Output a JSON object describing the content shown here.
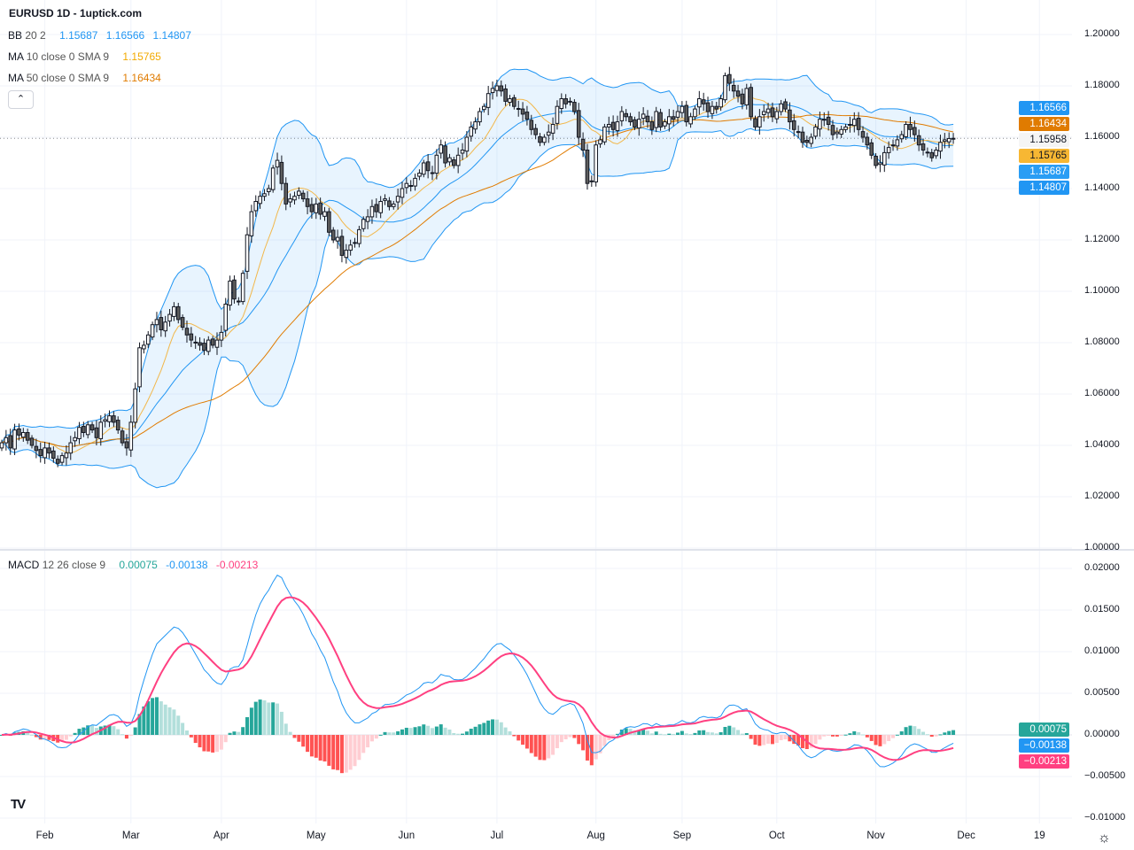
{
  "header": {
    "title": "EURUSD 1D - 1uptick.com"
  },
  "legends": {
    "bb": {
      "label": "BB",
      "params": "20 2",
      "basis": "1.15687",
      "upper": "1.16566",
      "lower": "1.14807"
    },
    "ma10": {
      "label": "MA",
      "params": "10 close 0 SMA 9",
      "value": "1.15765"
    },
    "ma50": {
      "label": "MA",
      "params": "50 close 0 SMA 9",
      "value": "1.16434"
    },
    "macd": {
      "label": "MACD",
      "params": "12 26 close 9",
      "hist": "0.00075",
      "macd": "-0.00138",
      "signal": "-0.00213"
    }
  },
  "collapse_icon": "chevron-up-icon",
  "price_tags": [
    {
      "text": "1.16566",
      "color": "#2196f3",
      "fg": "#ffffff"
    },
    {
      "text": "1.16434",
      "color": "#e07b00",
      "fg": "#ffffff"
    },
    {
      "text": "1.15958",
      "color": "#f5f5f5",
      "fg": "#131722"
    },
    {
      "text": "1.15765",
      "color": "#f7b733",
      "fg": "#131722"
    },
    {
      "text": "1.15687",
      "color": "#2a9df4",
      "fg": "#ffffff"
    },
    {
      "text": "1.14807",
      "color": "#2196f3",
      "fg": "#ffffff"
    }
  ],
  "macd_tags": [
    {
      "text": "0.00075",
      "color": "#26a69a"
    },
    {
      "text": "−0.00138",
      "color": "#2196f3"
    },
    {
      "text": "−0.00213",
      "color": "#ff4081"
    }
  ],
  "price_axis": [
    "1.20000",
    "1.18000",
    "1.16000",
    "1.14000",
    "1.12000",
    "1.10000",
    "1.08000",
    "1.06000",
    "1.04000",
    "1.02000",
    "1.00000"
  ],
  "macd_axis": [
    "0.02000",
    "0.01500",
    "0.01000",
    "0.00500",
    "0.00000",
    "−0.00500",
    "−0.01000"
  ],
  "time_axis": [
    {
      "label": "Feb",
      "bar": 10
    },
    {
      "label": "Mar",
      "bar": 30
    },
    {
      "label": "Apr",
      "bar": 51
    },
    {
      "label": "May",
      "bar": 73
    },
    {
      "label": "Jun",
      "bar": 94
    },
    {
      "label": "Jul",
      "bar": 115
    },
    {
      "label": "Aug",
      "bar": 138
    },
    {
      "label": "Sep",
      "bar": 158
    },
    {
      "label": "Oct",
      "bar": 180
    },
    {
      "label": "Nov",
      "bar": 203
    },
    {
      "label": "Dec",
      "bar": 224
    },
    {
      "label": "19",
      "bar": 241
    }
  ],
  "settings_icon": "gear-icon",
  "logo": "TV",
  "colors": {
    "up": "#ffffff",
    "down": "#5d5d5d",
    "bb": "#2196f3",
    "ma10": "#f2b74a",
    "ma50": "#e07b00",
    "macd": "#2196f3",
    "signal": "#ff4081",
    "hist_up_strong": "#26a69a",
    "hist_up_weak": "#b2dfdb",
    "hist_dn_strong": "#ff5252",
    "hist_dn_weak": "#ffcdd2"
  },
  "chart_data": {
    "type": "candlestick",
    "symbol": "EURUSD",
    "interval": "1D",
    "ylim": [
      1.0,
      1.2
    ],
    "macd_ylim": [
      -0.0105,
      0.021
    ],
    "grid": true,
    "last_price": 1.15958,
    "closes": [
      1.041,
      1.043,
      1.039,
      1.046,
      1.044,
      1.045,
      1.042,
      1.04,
      1.038,
      1.036,
      1.039,
      1.037,
      1.035,
      1.033,
      1.036,
      1.037,
      1.041,
      1.043,
      1.047,
      1.045,
      1.048,
      1.046,
      1.043,
      1.049,
      1.05,
      1.0515,
      1.049,
      1.046,
      1.041,
      1.039,
      1.049,
      1.062,
      1.078,
      1.079,
      1.083,
      1.087,
      1.089,
      1.085,
      1.088,
      1.091,
      1.094,
      1.089,
      1.086,
      1.083,
      1.081,
      1.08,
      1.079,
      1.077,
      1.081,
      1.079,
      1.081,
      1.084,
      1.095,
      1.104,
      1.097,
      1.096,
      1.107,
      1.122,
      1.131,
      1.135,
      1.137,
      1.138,
      1.14,
      1.148,
      1.151,
      1.142,
      1.134,
      1.136,
      1.137,
      1.139,
      1.136,
      1.133,
      1.131,
      1.134,
      1.13,
      1.131,
      1.123,
      1.12,
      1.121,
      1.114,
      1.116,
      1.118,
      1.119,
      1.124,
      1.128,
      1.129,
      1.133,
      1.131,
      1.135,
      1.136,
      1.133,
      1.134,
      1.137,
      1.14,
      1.142,
      1.141,
      1.144,
      1.146,
      1.15,
      1.147,
      1.146,
      1.153,
      1.157,
      1.15,
      1.152,
      1.149,
      1.153,
      1.155,
      1.16,
      1.164,
      1.166,
      1.17,
      1.172,
      1.177,
      1.179,
      1.18,
      1.178,
      1.174,
      1.175,
      1.172,
      1.171,
      1.169,
      1.167,
      1.163,
      1.161,
      1.158,
      1.16,
      1.162,
      1.165,
      1.172,
      1.175,
      1.173,
      1.174,
      1.17,
      1.16,
      1.155,
      1.142,
      1.143,
      1.157,
      1.159,
      1.164,
      1.165,
      1.163,
      1.166,
      1.17,
      1.168,
      1.166,
      1.164,
      1.167,
      1.169,
      1.166,
      1.163,
      1.17,
      1.164,
      1.166,
      1.168,
      1.167,
      1.17,
      1.172,
      1.166,
      1.168,
      1.171,
      1.175,
      1.173,
      1.17,
      1.172,
      1.171,
      1.175,
      1.184,
      1.181,
      1.178,
      1.176,
      1.173,
      1.179,
      1.168,
      1.164,
      1.168,
      1.17,
      1.171,
      1.168,
      1.17,
      1.173,
      1.171,
      1.166,
      1.163,
      1.162,
      1.158,
      1.158,
      1.16,
      1.164,
      1.167,
      1.167,
      1.165,
      1.161,
      1.162,
      1.163,
      1.164,
      1.165,
      1.167,
      1.163,
      1.16,
      1.157,
      1.153,
      1.149,
      1.15,
      1.154,
      1.156,
      1.157,
      1.159,
      1.161,
      1.165,
      1.163,
      1.161,
      1.157,
      1.155,
      1.154,
      1.152,
      1.155,
      1.158,
      1.159,
      1.1595,
      1.15958
    ]
  }
}
